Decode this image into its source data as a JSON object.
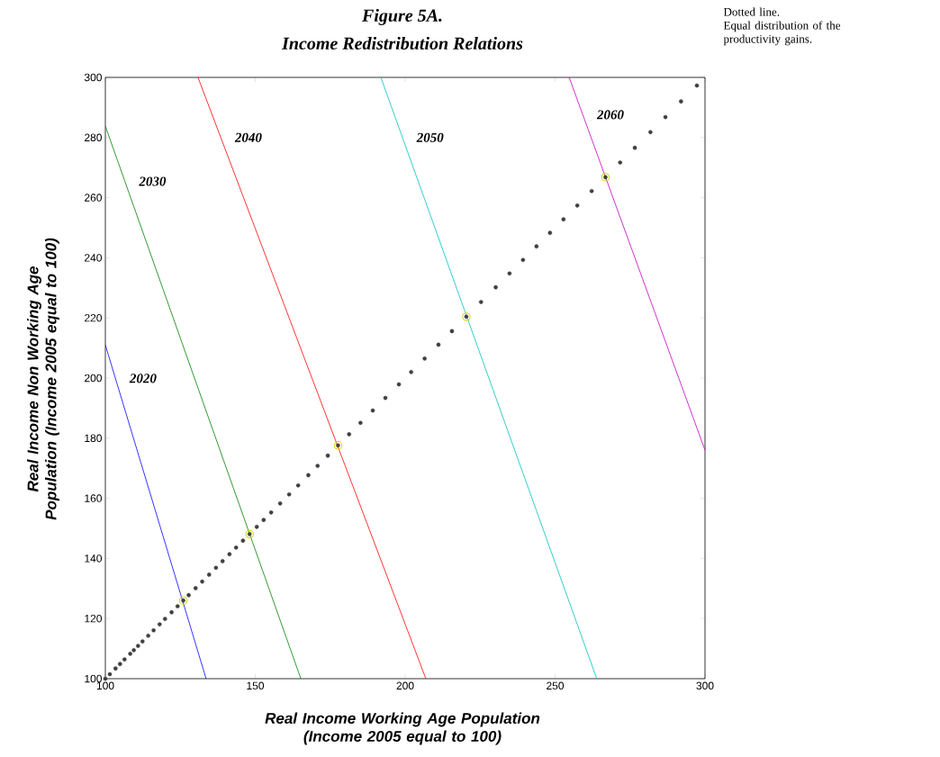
{
  "chart_data": {
    "type": "line",
    "title": "Figure 5A.",
    "subtitle": "Income Redistribution Relations",
    "xlabel": "Real Income Working Age Population (Income 2005 equal to 100)",
    "ylabel": "Real Income Non Working Age Population (Income 2005 equal to 100)",
    "xlim": [
      100,
      300
    ],
    "ylim": [
      100,
      300
    ],
    "xticks": [
      100,
      150,
      200,
      250,
      300
    ],
    "yticks": [
      100,
      120,
      140,
      160,
      180,
      200,
      220,
      240,
      260,
      280,
      300
    ],
    "series": [
      {
        "name": "2020",
        "color": "#0000ff",
        "x": [
          100,
          133.6
        ],
        "values": [
          211,
          100
        ]
      },
      {
        "name": "2030",
        "color": "#008000",
        "x": [
          100,
          165.2
        ],
        "values": [
          283.8,
          100
        ]
      },
      {
        "name": "2040",
        "color": "#ff0000",
        "x": [
          130.9,
          206.9
        ],
        "values": [
          300,
          100
        ]
      },
      {
        "name": "2050",
        "color": "#00bfbf",
        "x": [
          191.9,
          263.9
        ],
        "values": [
          300,
          100
        ]
      },
      {
        "name": "2060",
        "color": "#bf00bf",
        "x": [
          254.7,
          300
        ],
        "values": [
          300,
          176
        ]
      },
      {
        "type": "scatter",
        "color": "#404040",
        "x": [
          100,
          101.5,
          103.4,
          104.9,
          106.4,
          108.3,
          109.5,
          110.9,
          112.4,
          114.3,
          116.1,
          118.1,
          119.9,
          122.1,
          124.1,
          126.0,
          127.8,
          130.1,
          132.3,
          134.6,
          136.9,
          139.1,
          141.4,
          143.6,
          145.9,
          148.1,
          150.5,
          152.8,
          155.3,
          158.3,
          161.3,
          164.3,
          167.7,
          170.8,
          174.2,
          177.6,
          181.3,
          185.1,
          189.2,
          193.4,
          197.9,
          202.0,
          206.5,
          211.1,
          215.6,
          220.4,
          225.3,
          230.2,
          234.8,
          239.3,
          243.8,
          248.3,
          252.8,
          257.4,
          262.2,
          266.8,
          271.7,
          276.6,
          281.8,
          286.8,
          292.0,
          297.3
        ],
        "values": [
          100,
          101.5,
          103.4,
          104.9,
          106.4,
          108.3,
          109.5,
          110.9,
          112.4,
          114.3,
          116.1,
          118.1,
          119.9,
          122.1,
          124.1,
          126.0,
          127.8,
          130.1,
          132.3,
          134.6,
          136.9,
          139.1,
          141.4,
          143.6,
          145.9,
          148.1,
          150.5,
          152.8,
          155.3,
          158.3,
          161.3,
          164.3,
          167.7,
          170.8,
          174.2,
          177.6,
          181.3,
          185.1,
          189.2,
          193.4,
          197.9,
          202.0,
          206.5,
          211.1,
          215.6,
          220.4,
          225.3,
          230.2,
          234.8,
          239.3,
          243.8,
          248.3,
          252.8,
          257.4,
          262.2,
          266.8,
          271.7,
          276.6,
          281.8,
          286.8,
          292.0,
          297.3
        ]
      },
      {
        "type": "scatter",
        "color": "#d4d400",
        "marker": "circle",
        "x": [
          126.0,
          148.1,
          177.6,
          220.4,
          266.8
        ],
        "values": [
          126.0,
          148.1,
          177.6,
          220.4,
          266.8
        ]
      }
    ],
    "annotations": [
      "Dotted line.",
      "Equal distribution of the productivity gains."
    ]
  }
}
